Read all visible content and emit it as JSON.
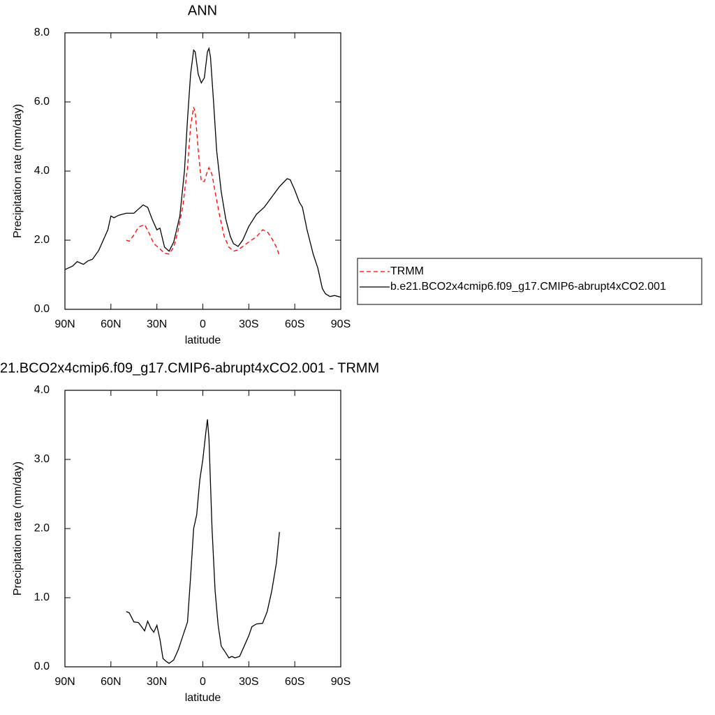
{
  "chart_data": [
    {
      "type": "line",
      "title": "ANN",
      "xlabel": "latitude",
      "ylabel": "Precipitation rate (mm/day)",
      "xlim": [
        90,
        -90
      ],
      "xticks": [
        {
          "value": 90,
          "label": "90N"
        },
        {
          "value": 60,
          "label": "60N"
        },
        {
          "value": 30,
          "label": "30N"
        },
        0,
        {
          "value": -30,
          "label": "30S"
        },
        {
          "value": -60,
          "label": "60S"
        },
        {
          "value": -90,
          "label": "90S"
        }
      ],
      "ylim": [
        0,
        8
      ],
      "yticks": [
        {
          "value": 0,
          "label": "0.0"
        },
        {
          "value": 2,
          "label": "2.0"
        },
        {
          "value": 4,
          "label": "4.0"
        },
        {
          "value": 6,
          "label": "6.0"
        },
        {
          "value": 8,
          "label": "8.0"
        }
      ],
      "legend": "right",
      "series": [
        {
          "name": "TRMM",
          "color": "#ff0000",
          "dash": true,
          "x": [
            50,
            48,
            45,
            42,
            38,
            35,
            32,
            28,
            25,
            22,
            19,
            16,
            13,
            10,
            8,
            6,
            5,
            3,
            1,
            -1,
            -3,
            -4,
            -6,
            -8,
            -11,
            -14,
            -17,
            -20,
            -23,
            -27,
            -30,
            -35,
            -39,
            -42,
            -45,
            -48,
            -50
          ],
          "values": [
            2.0,
            1.97,
            2.15,
            2.38,
            2.45,
            2.2,
            1.9,
            1.75,
            1.62,
            1.6,
            1.8,
            2.3,
            3.0,
            4.1,
            5.3,
            5.85,
            5.7,
            4.6,
            3.7,
            3.7,
            4.0,
            4.1,
            3.9,
            3.4,
            2.7,
            2.1,
            1.8,
            1.68,
            1.72,
            1.85,
            1.95,
            2.1,
            2.3,
            2.25,
            2.05,
            1.8,
            1.55
          ]
        },
        {
          "name": "b.e21.BCO2x4cmip6.f09_g17.CMIP6-abrupt4xCO2.001",
          "color": "#000000",
          "dash": false,
          "x": [
            90,
            85,
            82,
            78,
            75,
            72,
            68,
            65,
            62,
            60,
            58,
            55,
            50,
            45,
            42,
            39,
            36,
            33,
            30,
            28,
            25,
            22,
            19,
            15,
            12,
            10,
            8,
            6,
            5,
            3,
            1,
            -1,
            -3,
            -4,
            -5,
            -7,
            -9,
            -12,
            -15,
            -18,
            -20,
            -23,
            -26,
            -30,
            -35,
            -40,
            -45,
            -50,
            -55,
            -57,
            -60,
            -63,
            -65,
            -68,
            -72,
            -75,
            -78,
            -80,
            -83,
            -86,
            -90
          ],
          "values": [
            1.15,
            1.25,
            1.38,
            1.3,
            1.4,
            1.45,
            1.7,
            2.0,
            2.3,
            2.7,
            2.65,
            2.72,
            2.78,
            2.78,
            2.9,
            3.02,
            2.95,
            2.6,
            2.3,
            2.35,
            1.8,
            1.68,
            1.95,
            2.7,
            4.0,
            5.5,
            6.8,
            7.5,
            7.45,
            6.8,
            6.55,
            6.7,
            7.45,
            7.55,
            7.3,
            6.0,
            4.6,
            3.4,
            2.6,
            2.1,
            1.9,
            1.82,
            2.0,
            2.4,
            2.75,
            2.95,
            3.25,
            3.55,
            3.78,
            3.75,
            3.45,
            3.1,
            2.95,
            2.3,
            1.6,
            1.2,
            0.6,
            0.45,
            0.37,
            0.4,
            0.35
          ]
        }
      ]
    },
    {
      "type": "line",
      "title": "21.BCO2x4cmip6.f09_g17.CMIP6-abrupt4xCO2.001 - TRMM",
      "xlabel": "latitude",
      "ylabel": "Precipitation rate (mm/day)",
      "xlim": [
        90,
        -90
      ],
      "xticks": [
        {
          "value": 90,
          "label": "90N"
        },
        {
          "value": 60,
          "label": "60N"
        },
        {
          "value": 30,
          "label": "30N"
        },
        0,
        {
          "value": -30,
          "label": "30S"
        },
        {
          "value": -60,
          "label": "60S"
        },
        {
          "value": -90,
          "label": "90S"
        }
      ],
      "ylim": [
        0,
        4
      ],
      "yticks": [
        {
          "value": 0,
          "label": "0.0"
        },
        {
          "value": 1,
          "label": "1.0"
        },
        {
          "value": 2,
          "label": "2.0"
        },
        {
          "value": 3,
          "label": "3.0"
        },
        {
          "value": 4,
          "label": "4.0"
        }
      ],
      "series": [
        {
          "color": "#000000",
          "dash": false,
          "x": [
            50,
            48,
            45,
            42,
            38,
            36,
            34,
            32,
            30,
            28,
            26,
            24,
            22,
            19,
            16,
            13,
            10,
            8,
            6,
            4,
            2,
            0,
            -2,
            -3,
            -4,
            -6,
            -8,
            -10,
            -12,
            -15,
            -17,
            -19,
            -21,
            -24,
            -27,
            -30,
            -32,
            -35,
            -39,
            -42,
            -45,
            -48,
            -50
          ],
          "values": [
            0.8,
            0.78,
            0.65,
            0.64,
            0.52,
            0.66,
            0.56,
            0.5,
            0.6,
            0.4,
            0.12,
            0.08,
            0.05,
            0.1,
            0.25,
            0.45,
            0.65,
            1.3,
            2.0,
            2.2,
            2.7,
            3.0,
            3.4,
            3.58,
            3.3,
            2.0,
            1.1,
            0.6,
            0.3,
            0.2,
            0.13,
            0.15,
            0.13,
            0.15,
            0.3,
            0.45,
            0.58,
            0.62,
            0.63,
            0.8,
            1.1,
            1.5,
            1.95
          ]
        }
      ]
    }
  ]
}
